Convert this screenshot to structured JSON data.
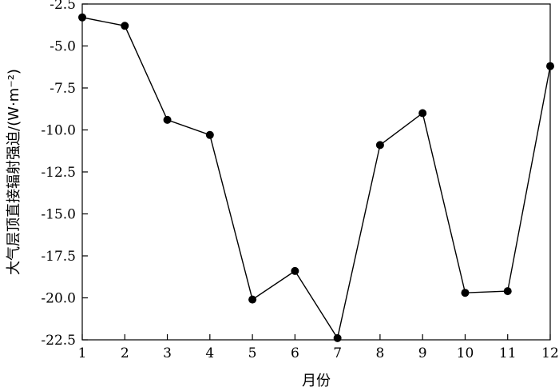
{
  "chart_data": {
    "type": "line",
    "xlabel": "月份",
    "ylabel": "大气层顶直接辐射强迫/(W·m⁻²)",
    "x": [
      1,
      2,
      3,
      4,
      5,
      6,
      7,
      8,
      9,
      10,
      11,
      12
    ],
    "x_ticks": [
      "1",
      "2",
      "3",
      "4",
      "5",
      "6",
      "7",
      "8",
      "9",
      "10",
      "11",
      "12"
    ],
    "y": [
      -3.3,
      -3.8,
      -9.4,
      -10.3,
      -20.1,
      -18.4,
      -22.4,
      -10.9,
      -9.0,
      -19.7,
      -19.6,
      -6.2
    ],
    "ylim": [
      -22.5,
      -2.5
    ],
    "y_ticks": [
      "-2.5",
      "-5.0",
      "-7.5",
      "-10.0",
      "-12.5",
      "-15.0",
      "-17.5",
      "-20.0",
      "-22.5"
    ],
    "grid": false,
    "line_color": "#000000",
    "marker": "filled-circle"
  }
}
